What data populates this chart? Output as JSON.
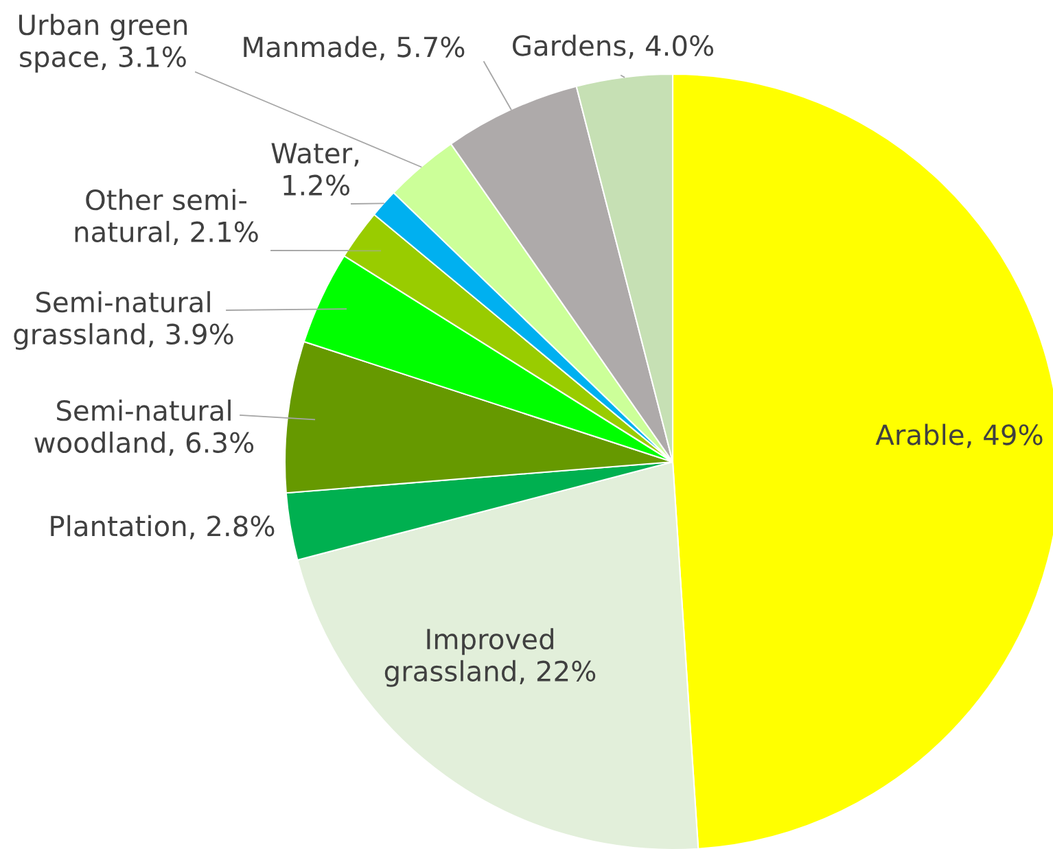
{
  "chart_data": {
    "type": "pie",
    "categories": [
      "Arable",
      "Improved grassland",
      "Plantation",
      "Semi-natural woodland",
      "Semi-natural grassland",
      "Other semi-natural",
      "Water",
      "Urban green space",
      "Manmade",
      "Gardens"
    ],
    "values": [
      49,
      22,
      2.8,
      6.3,
      3.9,
      2.1,
      1.2,
      3.1,
      5.7,
      4.0
    ],
    "value_labels": [
      ", 49%",
      ", 22%",
      ", 2.8%",
      ", 6.3%",
      ", 3.9%",
      ", 2.1%",
      ", 1.2%",
      ", 3.1%",
      ", 5.7%",
      ", 4.0%"
    ],
    "colors": [
      "#ffff00",
      "#e2efda",
      "#00b050",
      "#669900",
      "#00ff00",
      "#99cc00",
      "#00b0f0",
      "#ccff99",
      "#aeaaaa",
      "#c6e0b4"
    ],
    "legend": false
  }
}
